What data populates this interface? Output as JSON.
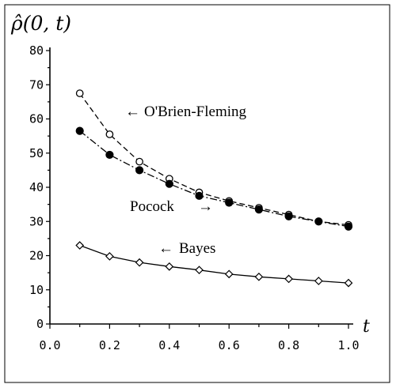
{
  "chart_data": {
    "type": "line",
    "title": "ρ̂(0, t)",
    "xlabel": "t",
    "ylabel": "",
    "xlim": [
      0.0,
      1.0
    ],
    "ylim": [
      0,
      80
    ],
    "x_ticks": [
      "0.0",
      "0.2",
      "0.4",
      "0.6",
      "0.8",
      "1.0"
    ],
    "y_ticks": [
      "0",
      "10",
      "20",
      "30",
      "40",
      "50",
      "60",
      "70",
      "80"
    ],
    "x": [
      0.1,
      0.2,
      0.3,
      0.4,
      0.5,
      0.6,
      0.7,
      0.8,
      0.9,
      1.0
    ],
    "series": [
      {
        "name": "O'Brien-Fleming",
        "marker": "open-circle",
        "dash": "dashed",
        "values": [
          67.5,
          55.5,
          47.5,
          42.5,
          38.5,
          36.0,
          34.0,
          32.0,
          30.0,
          29.0
        ]
      },
      {
        "name": "Pocock",
        "marker": "filled-circle",
        "dash": "dash-dot",
        "values": [
          56.5,
          49.5,
          45.0,
          41.0,
          37.5,
          35.5,
          33.5,
          31.5,
          30.0,
          28.5
        ]
      },
      {
        "name": "Bayes",
        "marker": "diamond",
        "dash": "solid",
        "values": [
          23.0,
          19.8,
          18.0,
          16.8,
          15.8,
          14.6,
          13.8,
          13.2,
          12.6,
          12.0
        ]
      }
    ],
    "annotations": [
      {
        "text": "O'Brien-Fleming",
        "arrow": "←",
        "series": "O'Brien-Fleming"
      },
      {
        "text": "Pocock",
        "arrow": "→",
        "series": "Pocock"
      },
      {
        "text": "Bayes",
        "arrow": "←",
        "series": "Bayes"
      }
    ]
  }
}
